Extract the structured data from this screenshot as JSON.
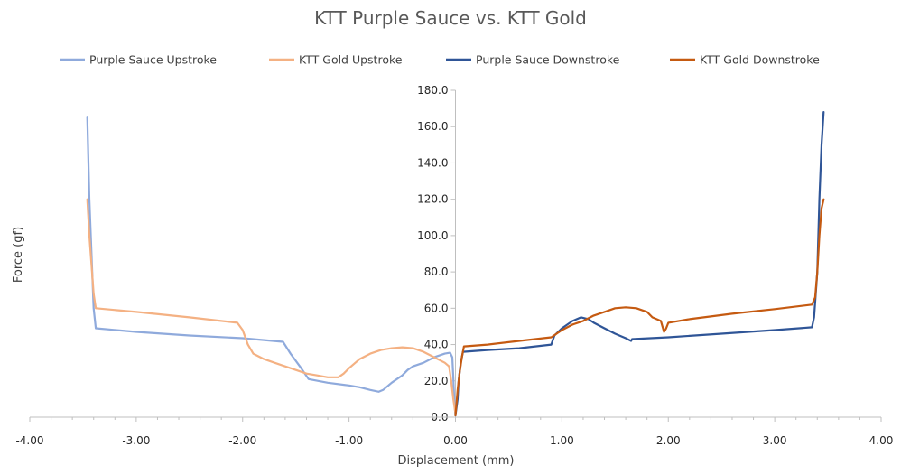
{
  "chart_data": {
    "type": "line",
    "title": "KTT Purple Sauce vs. KTT Gold",
    "xlabel": "Displacement (mm)",
    "ylabel": "Force (gf)",
    "xlim": [
      -4,
      4
    ],
    "ylim": [
      0,
      180
    ],
    "x_ticks": [
      "-4.00",
      "-3.00",
      "-2.00",
      "-1.00",
      "0.00",
      "1.00",
      "2.00",
      "3.00",
      "4.00"
    ],
    "y_ticks": [
      "0.0",
      "20.0",
      "40.0",
      "60.0",
      "80.0",
      "100.0",
      "120.0",
      "140.0",
      "160.0",
      "180.0"
    ],
    "grid": false,
    "legend_position": "top",
    "series": [
      {
        "name": "Purple Sauce Upstroke",
        "color": "#8faadc",
        "points": [
          [
            -3.46,
            165
          ],
          [
            -3.44,
            120
          ],
          [
            -3.4,
            60
          ],
          [
            -3.38,
            49
          ],
          [
            -3.0,
            47
          ],
          [
            -2.5,
            45
          ],
          [
            -2.0,
            43.5
          ],
          [
            -1.62,
            41.5
          ],
          [
            -1.55,
            35
          ],
          [
            -1.45,
            27
          ],
          [
            -1.38,
            21
          ],
          [
            -1.2,
            19
          ],
          [
            -1.0,
            17.5
          ],
          [
            -0.9,
            16.5
          ],
          [
            -0.8,
            15
          ],
          [
            -0.72,
            14
          ],
          [
            -0.68,
            15
          ],
          [
            -0.6,
            19
          ],
          [
            -0.5,
            23
          ],
          [
            -0.45,
            26
          ],
          [
            -0.4,
            28
          ],
          [
            -0.3,
            30
          ],
          [
            -0.2,
            33
          ],
          [
            -0.1,
            35
          ],
          [
            -0.05,
            35.5
          ],
          [
            -0.03,
            33
          ],
          [
            -0.02,
            22
          ],
          [
            -0.01,
            8
          ],
          [
            0.0,
            1
          ]
        ]
      },
      {
        "name": "KTT Gold Upstroke",
        "color": "#f4b183",
        "points": [
          [
            -3.46,
            120
          ],
          [
            -3.44,
            100
          ],
          [
            -3.4,
            68
          ],
          [
            -3.38,
            60
          ],
          [
            -3.0,
            58
          ],
          [
            -2.5,
            55
          ],
          [
            -2.05,
            52
          ],
          [
            -2.0,
            48
          ],
          [
            -1.95,
            40
          ],
          [
            -1.9,
            35
          ],
          [
            -1.8,
            32
          ],
          [
            -1.7,
            30
          ],
          [
            -1.6,
            28
          ],
          [
            -1.5,
            26
          ],
          [
            -1.4,
            24
          ],
          [
            -1.3,
            23
          ],
          [
            -1.2,
            22
          ],
          [
            -1.1,
            22
          ],
          [
            -1.05,
            24
          ],
          [
            -1.0,
            27
          ],
          [
            -0.9,
            32
          ],
          [
            -0.8,
            35
          ],
          [
            -0.7,
            37
          ],
          [
            -0.6,
            38
          ],
          [
            -0.5,
            38.5
          ],
          [
            -0.4,
            38
          ],
          [
            -0.3,
            36
          ],
          [
            -0.2,
            33
          ],
          [
            -0.1,
            30
          ],
          [
            -0.06,
            28
          ],
          [
            -0.04,
            20
          ],
          [
            -0.02,
            10
          ],
          [
            0.0,
            2
          ]
        ]
      },
      {
        "name": "Purple Sauce Downstroke",
        "color": "#2f5597",
        "points": [
          [
            0.0,
            1
          ],
          [
            0.02,
            10
          ],
          [
            0.03,
            20
          ],
          [
            0.05,
            30
          ],
          [
            0.07,
            36
          ],
          [
            0.3,
            37
          ],
          [
            0.6,
            38
          ],
          [
            0.9,
            40
          ],
          [
            0.93,
            45
          ],
          [
            1.0,
            49
          ],
          [
            1.1,
            53
          ],
          [
            1.18,
            55
          ],
          [
            1.25,
            54
          ],
          [
            1.3,
            52
          ],
          [
            1.4,
            49
          ],
          [
            1.5,
            46
          ],
          [
            1.6,
            43.5
          ],
          [
            1.65,
            42
          ],
          [
            1.66,
            43
          ],
          [
            2.0,
            44
          ],
          [
            2.5,
            46
          ],
          [
            3.0,
            48
          ],
          [
            3.35,
            49.5
          ],
          [
            3.37,
            55
          ],
          [
            3.4,
            80
          ],
          [
            3.42,
            120
          ],
          [
            3.44,
            150
          ],
          [
            3.46,
            168
          ]
        ]
      },
      {
        "name": "KTT Gold Downstroke",
        "color": "#c55a11",
        "points": [
          [
            0.0,
            1
          ],
          [
            0.02,
            15
          ],
          [
            0.04,
            25
          ],
          [
            0.06,
            33
          ],
          [
            0.08,
            39
          ],
          [
            0.3,
            40
          ],
          [
            0.6,
            42
          ],
          [
            0.9,
            44
          ],
          [
            0.95,
            46
          ],
          [
            1.0,
            48
          ],
          [
            1.1,
            51
          ],
          [
            1.2,
            53
          ],
          [
            1.3,
            56
          ],
          [
            1.4,
            58
          ],
          [
            1.5,
            60
          ],
          [
            1.6,
            60.5
          ],
          [
            1.7,
            60
          ],
          [
            1.8,
            58
          ],
          [
            1.85,
            55
          ],
          [
            1.93,
            53
          ],
          [
            1.96,
            47
          ],
          [
            1.98,
            49
          ],
          [
            2.0,
            52
          ],
          [
            2.2,
            54
          ],
          [
            2.6,
            57
          ],
          [
            3.0,
            59.5
          ],
          [
            3.35,
            62
          ],
          [
            3.38,
            66
          ],
          [
            3.4,
            80
          ],
          [
            3.42,
            100
          ],
          [
            3.44,
            115
          ],
          [
            3.46,
            120
          ]
        ]
      }
    ]
  }
}
